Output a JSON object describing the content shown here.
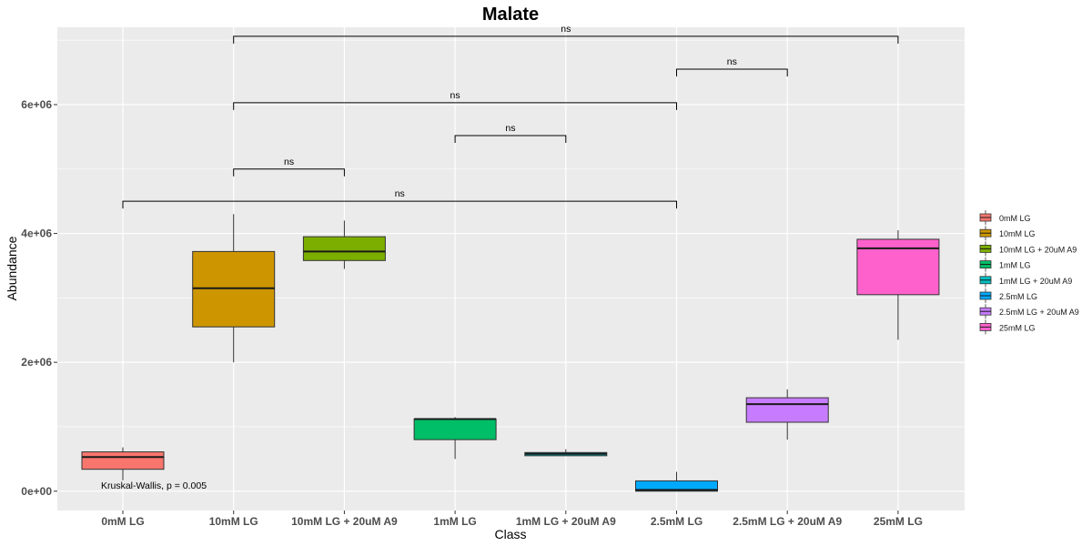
{
  "chart_data": {
    "type": "box",
    "title": "Malate",
    "xlabel": "Class",
    "ylabel": "Abundance",
    "ylim": [
      -300000,
      7200000
    ],
    "yticks": [
      0,
      2000000,
      4000000,
      6000000
    ],
    "ytick_labels": [
      "0e+00",
      "2e+06",
      "4e+06",
      "6e+06"
    ],
    "grid": true,
    "legend_position": "right",
    "categories": [
      "0mM LG",
      "10mM LG",
      "10mM LG + 20uM A9",
      "1mM LG",
      "1mM LG + 20uM A9",
      "2.5mM LG",
      "2.5mM LG + 20uM A9",
      "25mM LG"
    ],
    "series": [
      {
        "name": "0mM LG",
        "color": "#F8766D",
        "min": 170000,
        "q1": 340000,
        "median": 530000,
        "q3": 610000,
        "max": 680000
      },
      {
        "name": "10mM LG",
        "color": "#CD9600",
        "min": 2000000,
        "q1": 2550000,
        "median": 3150000,
        "q3": 3720000,
        "max": 4300000
      },
      {
        "name": "10mM LG + 20uM A9",
        "color": "#7CAE00",
        "min": 3450000,
        "q1": 3580000,
        "median": 3720000,
        "q3": 3950000,
        "max": 4200000
      },
      {
        "name": "1mM LG",
        "color": "#00BE67",
        "min": 500000,
        "q1": 800000,
        "median": 1120000,
        "q3": 1120000,
        "max": 1150000
      },
      {
        "name": "1mM LG + 20uM A9",
        "color": "#00BFC4",
        "min": 550000,
        "q1": 550000,
        "median": 580000,
        "q3": 600000,
        "max": 650000
      },
      {
        "name": "2.5mM LG",
        "color": "#00A9FF",
        "min": 0,
        "q1": 0,
        "median": 20000,
        "q3": 160000,
        "max": 300000
      },
      {
        "name": "2.5mM LG + 20uM A9",
        "color": "#C77CFF",
        "min": 800000,
        "q1": 1070000,
        "median": 1350000,
        "q3": 1450000,
        "max": 1580000
      },
      {
        "name": "25mM LG",
        "color": "#FF61CC",
        "min": 2350000,
        "q1": 3050000,
        "median": 3770000,
        "q3": 3910000,
        "max": 4050000
      }
    ],
    "comparisons": [
      {
        "from": 0,
        "to": 5,
        "y": 4500000,
        "label": "ns"
      },
      {
        "from": 1,
        "to": 2,
        "y": 5000000,
        "label": "ns"
      },
      {
        "from": 3,
        "to": 4,
        "y": 5520000,
        "label": "ns"
      },
      {
        "from": 1,
        "to": 5,
        "y": 6030000,
        "label": "ns"
      },
      {
        "from": 5,
        "to": 6,
        "y": 6550000,
        "label": "ns"
      },
      {
        "from": 1,
        "to": 7,
        "y": 7060000,
        "label": "ns"
      }
    ],
    "annotation": "Kruskal-Wallis, p = 0.005"
  }
}
